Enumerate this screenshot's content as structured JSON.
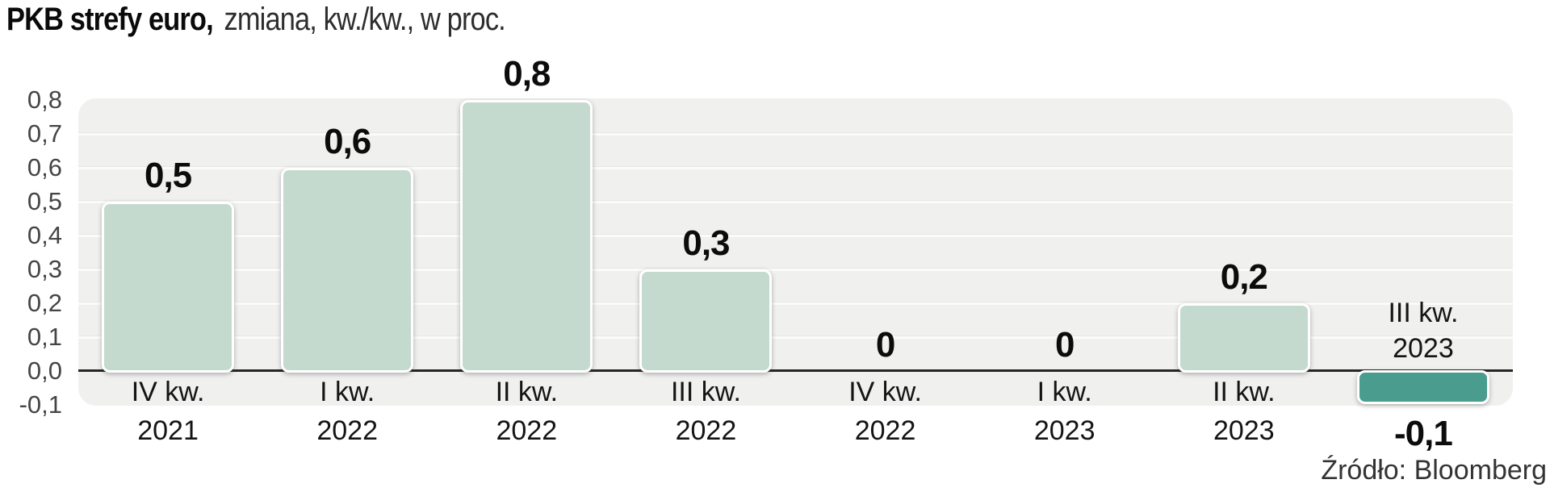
{
  "header": {
    "title_bold": "PKB strefy euro,",
    "subtitle": "zmiana, kw./kw., w proc."
  },
  "source_label": "Źródło: Bloomberg",
  "chart_data": {
    "type": "bar",
    "title": "PKB strefy euro, zmiana, kw./kw., w proc.",
    "categories": [
      "IV kw. 2021",
      "I kw. 2022",
      "II kw. 2022",
      "III kw. 2022",
      "IV kw. 2022",
      "I kw. 2023",
      "II kw. 2023",
      "III kw. 2023"
    ],
    "values": [
      0.5,
      0.6,
      0.8,
      0.3,
      0,
      0,
      0.2,
      -0.1
    ],
    "value_labels": [
      "0,5",
      "0,6",
      "0,8",
      "0,3",
      "0",
      "0",
      "0,2",
      "-0,1"
    ],
    "bars": [
      {
        "quarter": "IV kw.",
        "year": "2021",
        "value": 0.5,
        "label": "0,5"
      },
      {
        "quarter": "I kw.",
        "year": "2022",
        "value": 0.6,
        "label": "0,6"
      },
      {
        "quarter": "II kw.",
        "year": "2022",
        "value": 0.8,
        "label": "0,8"
      },
      {
        "quarter": "III kw.",
        "year": "2022",
        "value": 0.3,
        "label": "0,3"
      },
      {
        "quarter": "IV kw.",
        "year": "2022",
        "value": 0,
        "label": "0"
      },
      {
        "quarter": "I kw.",
        "year": "2023",
        "value": 0,
        "label": "0"
      },
      {
        "quarter": "II kw.",
        "year": "2023",
        "value": 0.2,
        "label": "0,2"
      },
      {
        "quarter": "III kw.",
        "year": "2023",
        "value": -0.1,
        "label": "-0,1"
      }
    ],
    "y_ticks": [
      {
        "value": 0.8,
        "label": "0,8"
      },
      {
        "value": 0.7,
        "label": "0,7"
      },
      {
        "value": 0.6,
        "label": "0,6"
      },
      {
        "value": 0.5,
        "label": "0,5"
      },
      {
        "value": 0.4,
        "label": "0,4"
      },
      {
        "value": 0.3,
        "label": "0,3"
      },
      {
        "value": 0.2,
        "label": "0,2"
      },
      {
        "value": 0.1,
        "label": "0,1"
      },
      {
        "value": 0.0,
        "label": "0,0"
      },
      {
        "value": -0.1,
        "label": "-0,1"
      }
    ],
    "gridline_values": [
      0.7,
      0.6,
      0.5,
      0.4,
      0.3,
      0.2,
      0.1
    ],
    "ylim": [
      -0.1,
      0.8
    ],
    "grid": true,
    "legend": false,
    "xlabel": "",
    "ylabel": "",
    "source": "Źródło: Bloomberg",
    "colors": {
      "bar_positive": "#c5dacf",
      "bar_negative": "#4a9c8e",
      "plot_background": "#f0f0ef",
      "gridline": "#fbfbfa",
      "zero_line": "#262626"
    }
  }
}
